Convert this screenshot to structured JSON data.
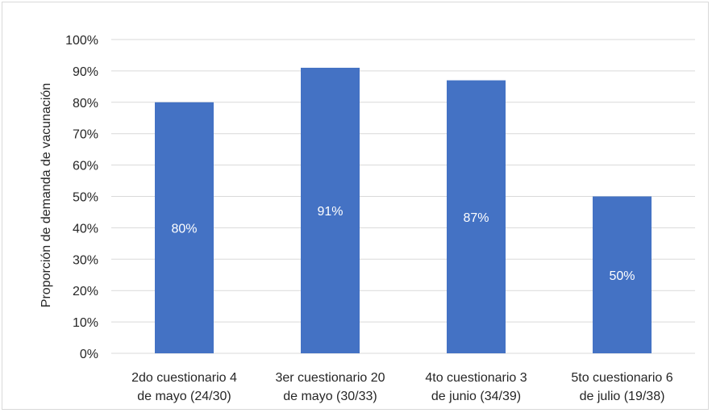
{
  "chart_data": {
    "type": "bar",
    "title": "",
    "xlabel": "",
    "ylabel": "Proporción de demanda de vacunación",
    "ylim": [
      0,
      100
    ],
    "yticks": [
      "0%",
      "10%",
      "20%",
      "30%",
      "40%",
      "50%",
      "60%",
      "70%",
      "80%",
      "90%",
      "100%"
    ],
    "grid": true,
    "legend": "none",
    "categories": [
      [
        "2do cuestionario 4",
        "de mayo (24/30)"
      ],
      [
        "3er cuestionario 20",
        "de mayo (30/33)"
      ],
      [
        "4to cuestionario 3",
        "de junio (34/39)"
      ],
      [
        "5to cuestionario 6",
        "de julio (19/38)"
      ]
    ],
    "values": [
      80,
      91,
      87,
      50
    ],
    "data_labels": [
      "80%",
      "91%",
      "87%",
      "50%"
    ],
    "colors": {
      "bar": "#4472c4",
      "grid": "#d9d9d9",
      "text": "#262626",
      "data_label": "#ffffff"
    }
  }
}
